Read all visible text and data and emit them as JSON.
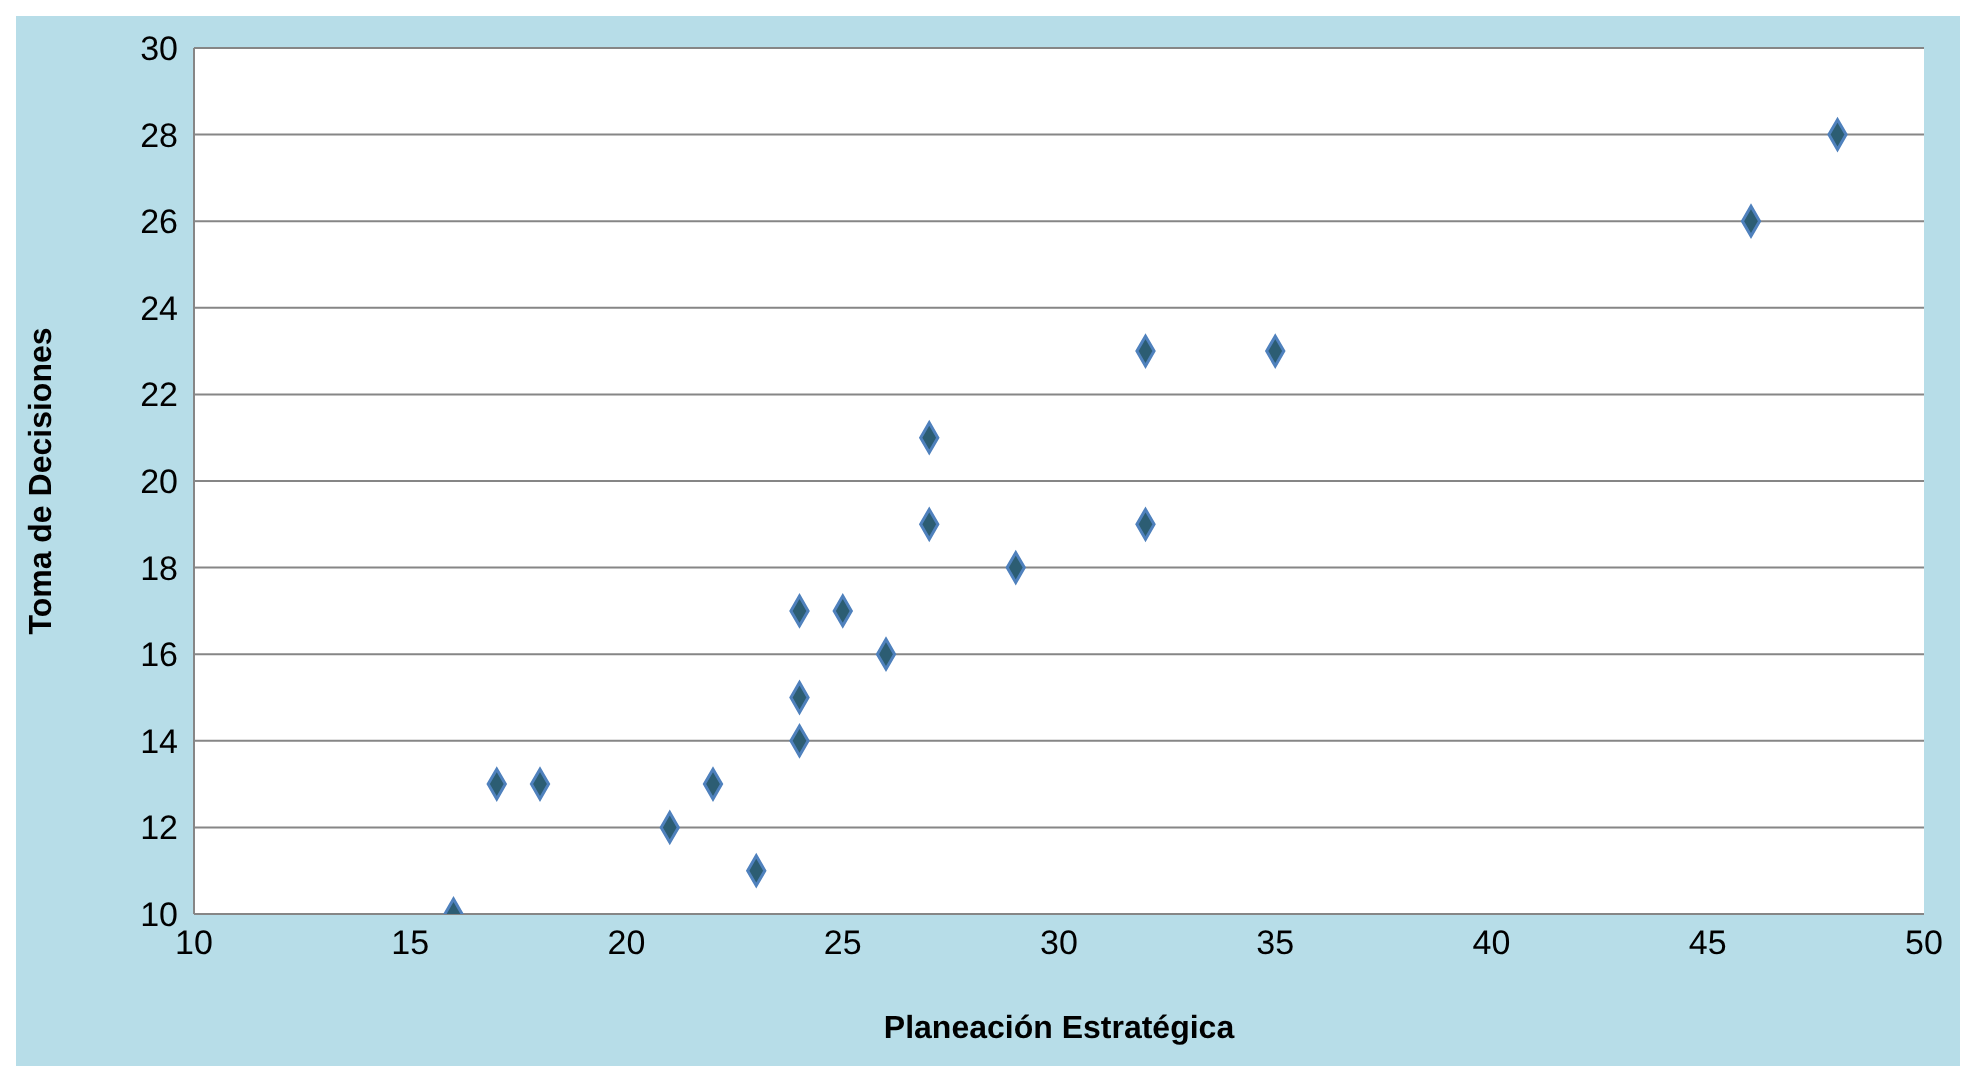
{
  "chart_data": {
    "type": "scatter",
    "xlabel": "Planeación Estratégica",
    "ylabel": "Toma de Decisiones",
    "x": [
      16,
      17,
      18,
      21,
      22,
      23,
      24,
      24,
      24,
      25,
      26,
      27,
      27,
      29,
      32,
      32,
      35,
      46,
      48
    ],
    "series": [
      {
        "color": "#2c5d73",
        "values": [
          10,
          13,
          13,
          12,
          13,
          11,
          14,
          15,
          17,
          17,
          16,
          19,
          21,
          18,
          19,
          23,
          23,
          26,
          28
        ]
      }
    ],
    "xlim": [
      10,
      50
    ],
    "xticks": [
      10,
      15,
      20,
      25,
      30,
      35,
      40,
      45,
      50
    ],
    "ylim": [
      10,
      30
    ],
    "yticks": [
      10,
      12,
      14,
      16,
      18,
      20,
      22,
      24,
      26,
      28,
      30
    ],
    "grid": "y",
    "marker": "diamond",
    "legend": false
  }
}
